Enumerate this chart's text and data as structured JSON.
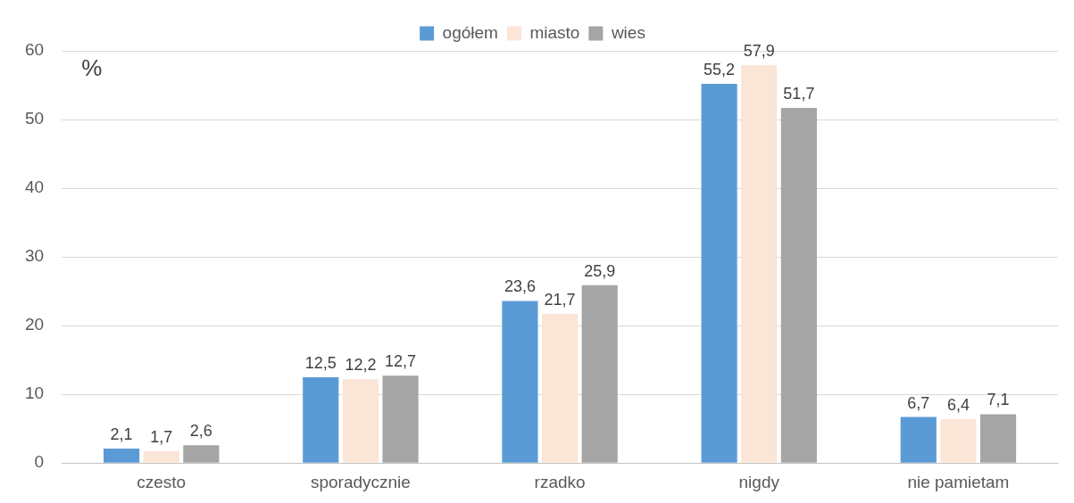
{
  "chart_data": {
    "type": "bar",
    "ylabel": "%",
    "categories": [
      "czesto",
      "sporadycznie",
      "rzadko",
      "nigdy",
      "nie pamietam"
    ],
    "series": [
      {
        "name": "ogółem",
        "color": "#5b9bd5",
        "values": [
          2.1,
          12.5,
          23.6,
          55.2,
          6.7
        ],
        "value_labels": [
          "2,1",
          "12,5",
          "23,6",
          "55,2",
          "6,7"
        ]
      },
      {
        "name": "miasto",
        "color": "#fbe5d6",
        "values": [
          1.7,
          12.2,
          21.7,
          57.9,
          6.4
        ],
        "value_labels": [
          "1,7",
          "12,2",
          "21,7",
          "57,9",
          "6,4"
        ]
      },
      {
        "name": "wies",
        "color": "#a5a5a5",
        "values": [
          2.6,
          12.7,
          25.9,
          51.7,
          7.1
        ],
        "value_labels": [
          "2,6",
          "12,7",
          "25,9",
          "51,7",
          "7,1"
        ]
      }
    ],
    "ylim": [
      0,
      60
    ],
    "yticks": [
      0,
      10,
      20,
      30,
      40,
      50,
      60
    ],
    "grid": "y",
    "legend": "top"
  }
}
